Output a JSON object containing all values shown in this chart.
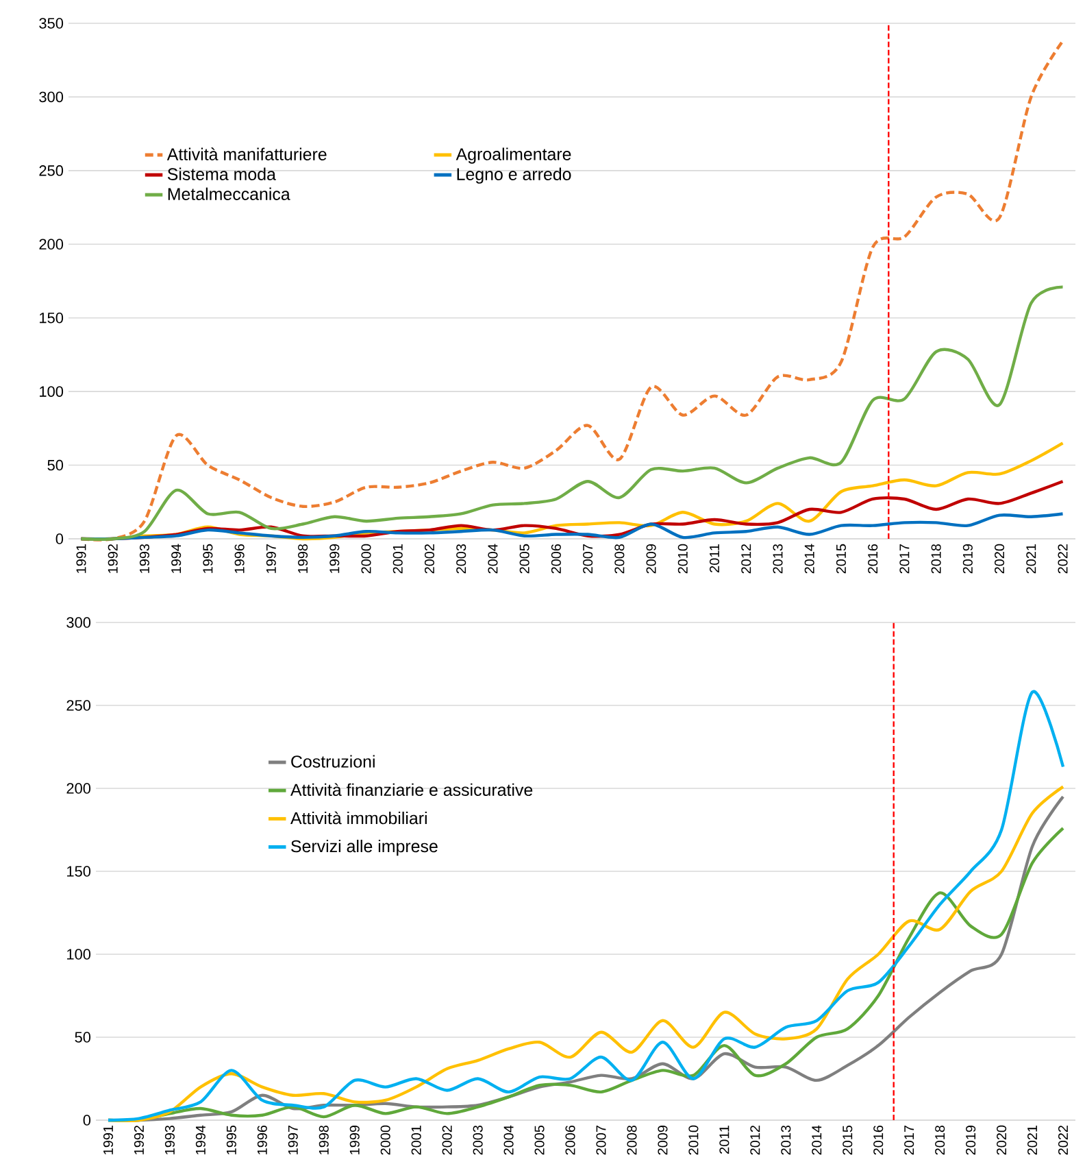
{
  "chart_data": [
    {
      "type": "line",
      "xlim": [
        1990.6,
        2022.4
      ],
      "ylim": [
        0,
        350
      ],
      "yticks": [
        0,
        50,
        100,
        150,
        200,
        250,
        300,
        350
      ],
      "xticks": [
        1991,
        1992,
        1993,
        1994,
        1995,
        1996,
        1997,
        1998,
        1999,
        2000,
        2001,
        2002,
        2003,
        2004,
        2005,
        2006,
        2007,
        2008,
        2009,
        2010,
        2011,
        2012,
        2013,
        2014,
        2015,
        2016,
        2017,
        2018,
        2019,
        2020,
        2021,
        2022
      ],
      "x": [
        1991,
        1992,
        1993,
        1994,
        1995,
        1996,
        1997,
        1998,
        1999,
        2000,
        2001,
        2002,
        2003,
        2004,
        2005,
        2006,
        2007,
        2008,
        2009,
        2010,
        2011,
        2012,
        2013,
        2014,
        2015,
        2016,
        2017,
        2018,
        2019,
        2020,
        2021,
        2022
      ],
      "grid": "y",
      "legend": "top left",
      "ref_lines": [
        {
          "axis": "x",
          "value": 2016.5,
          "color": "#ff0000",
          "line_style": "dashed"
        }
      ],
      "series": [
        {
          "name": "Attività manifatturiere",
          "color": "#ed7d31",
          "line_style": "dashed",
          "values": [
            0,
            0,
            12,
            70,
            50,
            40,
            28,
            22,
            25,
            35,
            35,
            38,
            46,
            52,
            48,
            60,
            77,
            54,
            103,
            84,
            97,
            84,
            110,
            108,
            120,
            198,
            205,
            232,
            234,
            218,
            300,
            338
          ]
        },
        {
          "name": "Agroalimentare",
          "color": "#ffc000",
          "values": [
            0,
            0,
            2,
            3,
            8,
            3,
            2,
            0,
            1,
            4,
            5,
            6,
            7,
            6,
            4,
            9,
            10,
            11,
            9,
            18,
            10,
            12,
            24,
            12,
            32,
            36,
            40,
            36,
            45,
            44,
            53,
            65
          ]
        },
        {
          "name": "Sistema moda",
          "color": "#c00000",
          "values": [
            0,
            0,
            1,
            3,
            7,
            6,
            8,
            2,
            2,
            2,
            5,
            6,
            9,
            6,
            9,
            7,
            2,
            3,
            10,
            10,
            13,
            10,
            11,
            20,
            18,
            27,
            27,
            20,
            27,
            24,
            31,
            39
          ]
        },
        {
          "name": "Legno e arredo",
          "color": "#0070c0",
          "values": [
            0,
            0,
            1,
            2,
            6,
            4,
            2,
            1,
            2,
            5,
            4,
            4,
            5,
            6,
            2,
            3,
            3,
            1,
            10,
            1,
            4,
            5,
            8,
            3,
            9,
            9,
            11,
            11,
            9,
            16,
            15,
            17
          ]
        },
        {
          "name": "Metalmeccanica",
          "color": "#70ad47",
          "values": [
            0,
            0,
            5,
            33,
            17,
            18,
            7,
            10,
            15,
            12,
            14,
            15,
            17,
            23,
            24,
            27,
            39,
            28,
            47,
            46,
            48,
            38,
            48,
            55,
            52,
            94,
            95,
            127,
            122,
            91,
            160,
            171
          ]
        }
      ]
    },
    {
      "type": "line",
      "xlim": [
        1990.6,
        2022.4
      ],
      "ylim": [
        0,
        300
      ],
      "yticks": [
        0,
        50,
        100,
        150,
        200,
        250,
        300
      ],
      "xticks": [
        1991,
        1992,
        1993,
        1994,
        1995,
        1996,
        1997,
        1998,
        1999,
        2000,
        2001,
        2002,
        2003,
        2004,
        2005,
        2006,
        2007,
        2008,
        2009,
        2010,
        2011,
        2012,
        2013,
        2014,
        2015,
        2016,
        2017,
        2018,
        2019,
        2020,
        2021,
        2022
      ],
      "x": [
        1991,
        1992,
        1993,
        1994,
        1995,
        1996,
        1997,
        1998,
        1999,
        2000,
        2001,
        2002,
        2003,
        2004,
        2005,
        2006,
        2007,
        2008,
        2009,
        2010,
        2011,
        2012,
        2013,
        2014,
        2015,
        2016,
        2017,
        2018,
        2019,
        2020,
        2021,
        2022
      ],
      "grid": "y",
      "legend": "left",
      "ref_lines": [
        {
          "axis": "x",
          "value": 2016.5,
          "color": "#ff0000",
          "line_style": "dashed"
        }
      ],
      "series": [
        {
          "name": "Costruzioni",
          "color": "#7f7f7f",
          "values": [
            0,
            0,
            1,
            3,
            5,
            15,
            7,
            9,
            9,
            10,
            8,
            8,
            9,
            14,
            20,
            23,
            27,
            25,
            34,
            25,
            40,
            32,
            32,
            24,
            33,
            45,
            62,
            77,
            90,
            100,
            165,
            195
          ]
        },
        {
          "name": "Attività finanziarie e assicurative",
          "color": "#5fa83a",
          "values": [
            0,
            0,
            4,
            7,
            3,
            3,
            8,
            2,
            9,
            4,
            8,
            4,
            8,
            14,
            21,
            21,
            17,
            24,
            30,
            27,
            45,
            27,
            34,
            50,
            55,
            75,
            110,
            137,
            117,
            112,
            155,
            176
          ]
        },
        {
          "name": "Attività immobiliari",
          "color": "#ffc000",
          "values": [
            0,
            0,
            5,
            20,
            28,
            20,
            15,
            16,
            11,
            12,
            20,
            31,
            36,
            43,
            47,
            38,
            53,
            41,
            60,
            44,
            65,
            52,
            49,
            55,
            85,
            100,
            120,
            115,
            138,
            150,
            185,
            201
          ]
        },
        {
          "name": "Servizi alle imprese",
          "color": "#00b0f0",
          "values": [
            0,
            1,
            6,
            11,
            30,
            12,
            9,
            8,
            24,
            20,
            25,
            18,
            25,
            17,
            26,
            25,
            38,
            24,
            47,
            25,
            49,
            44,
            56,
            60,
            78,
            83,
            105,
            130,
            150,
            175,
            258,
            213
          ]
        }
      ]
    }
  ]
}
